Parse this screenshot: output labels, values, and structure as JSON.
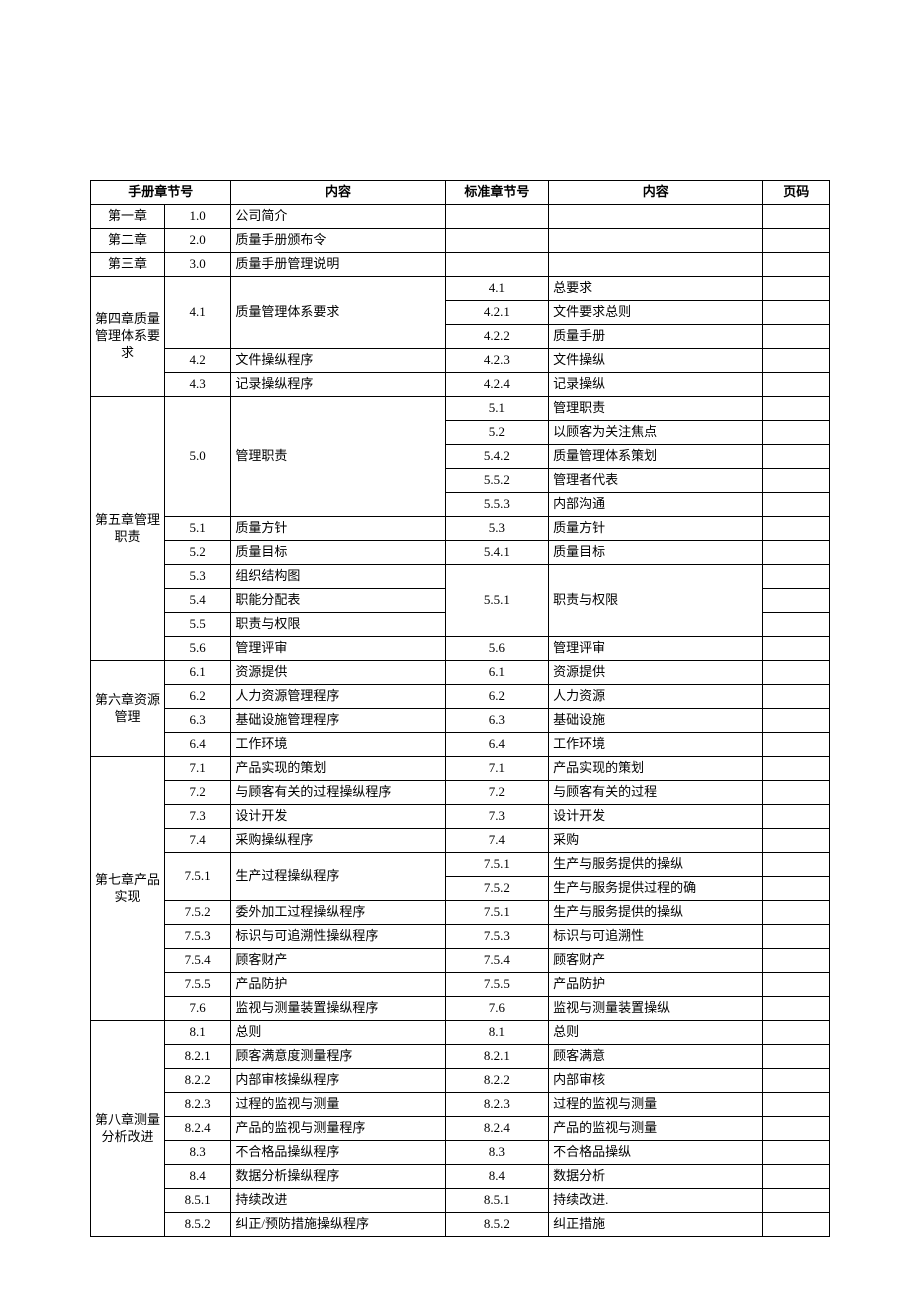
{
  "headers": {
    "manual_chapter": "手册章节号",
    "content1": "内容",
    "std_chapter": "标准章节号",
    "content2": "内容",
    "page": "页码"
  },
  "rows": [
    {
      "chapter": "第一章",
      "chapter_rows": 1,
      "section": "1.0",
      "content1": "公司简介",
      "std": "",
      "content2": "",
      "page": ""
    },
    {
      "chapter": "第二章",
      "chapter_rows": 1,
      "section": "2.0",
      "content1": "质量手册颁布令",
      "std": "",
      "content2": "",
      "page": ""
    },
    {
      "chapter": "第三章",
      "chapter_rows": 1,
      "section": "3.0",
      "content1": "质量手册管理说明",
      "std": "",
      "content2": "",
      "page": ""
    },
    {
      "chapter": "第四章质量管理体系要求",
      "chapter_rows": 5,
      "section": "4.1",
      "section_rows": 3,
      "content1": "质量管理体系要求",
      "content1_rows": 3,
      "std": "4.1",
      "content2": "总要求",
      "page": ""
    },
    {
      "std": "4.2.1",
      "content2": "文件要求总则",
      "page": ""
    },
    {
      "std": "4.2.2",
      "content2": "质量手册",
      "page": ""
    },
    {
      "section": "4.2",
      "content1": "文件操纵程序",
      "std": "4.2.3",
      "content2": "文件操纵",
      "page": ""
    },
    {
      "section": "4.3",
      "content1": "记录操纵程序",
      "std": "4.2.4",
      "content2": "记录操纵",
      "page": ""
    },
    {
      "chapter": "第五章管理职责",
      "chapter_rows": 11,
      "section": "5.0",
      "section_rows": 5,
      "content1": "管理职责",
      "content1_rows": 5,
      "std": "5.1",
      "content2": "管理职责",
      "page": ""
    },
    {
      "std": "5.2",
      "content2": "以顾客为关注焦点",
      "page": ""
    },
    {
      "std": "5.4.2",
      "content2": "质量管理体系策划",
      "page": ""
    },
    {
      "std": "5.5.2",
      "content2": "管理者代表",
      "page": ""
    },
    {
      "std": "5.5.3",
      "content2": "内部沟通",
      "page": ""
    },
    {
      "section": "5.1",
      "content1": "质量方针",
      "std": "5.3",
      "content2": "质量方针",
      "page": ""
    },
    {
      "section": "5.2",
      "content1": "质量目标",
      "std": "5.4.1",
      "content2": "质量目标",
      "page": ""
    },
    {
      "section": "5.3",
      "content1": "组织结构图",
      "std": "5.5.1",
      "std_rows": 3,
      "content2": "职责与权限",
      "content2_rows": 3,
      "page": ""
    },
    {
      "section": "5.4",
      "content1": "职能分配表",
      "page": ""
    },
    {
      "section": "5.5",
      "content1": "职责与权限",
      "page": ""
    },
    {
      "section": "5.6",
      "content1": "管理评审",
      "std": "5.6",
      "content2": "管理评审",
      "page": ""
    },
    {
      "chapter": "第六章资源管理",
      "chapter_rows": 4,
      "section": "6.1",
      "content1": "资源提供",
      "std": "6.1",
      "content2": "资源提供",
      "page": ""
    },
    {
      "section": "6.2",
      "content1": "人力资源管理程序",
      "std": "6.2",
      "content2": "人力资源",
      "page": ""
    },
    {
      "section": "6.3",
      "content1": "基础设施管理程序",
      "std": "6.3",
      "content2": "基础设施",
      "page": ""
    },
    {
      "section": "6.4",
      "content1": "工作环境",
      "std": "6.4",
      "content2": "工作环境",
      "page": ""
    },
    {
      "chapter": "第七章产品实现",
      "chapter_rows": 11,
      "section": "7.1",
      "content1": "产品实现的策划",
      "std": "7.1",
      "content2": "产品实现的策划",
      "page": ""
    },
    {
      "section": "7.2",
      "content1": "与顾客有关的过程操纵程序",
      "std": "7.2",
      "content2": "与顾客有关的过程",
      "page": ""
    },
    {
      "section": "7.3",
      "content1": "设计开发",
      "std": "7.3",
      "content2": "设计开发",
      "page": ""
    },
    {
      "section": "7.4",
      "content1": "采购操纵程序",
      "std": "7.4",
      "content2": "采购",
      "page": ""
    },
    {
      "section": "7.5.1",
      "section_rows": 2,
      "content1": "生产过程操纵程序",
      "content1_rows": 2,
      "std": "7.5.1",
      "content2": "生产与服务提供的操纵",
      "page": ""
    },
    {
      "std": "7.5.2",
      "content2": "生产与服务提供过程的确",
      "page": ""
    },
    {
      "section": "7.5.2",
      "content1": "委外加工过程操纵程序",
      "std": "7.5.1",
      "content2": "生产与服务提供的操纵",
      "page": ""
    },
    {
      "section": "7.5.3",
      "content1": "标识与可追溯性操纵程序",
      "std": "7.5.3",
      "content2": "标识与可追溯性",
      "page": ""
    },
    {
      "section": "7.5.4",
      "content1": "顾客财产",
      "std": "7.5.4",
      "content2": "顾客财产",
      "page": ""
    },
    {
      "section": "7.5.5",
      "content1": "产品防护",
      "std": "7.5.5",
      "content2": "产品防护",
      "page": ""
    },
    {
      "section": "7.6",
      "content1": "监视与测量装置操纵程序",
      "std": "7.6",
      "content2": "监视与测量装置操纵",
      "page": ""
    },
    {
      "chapter": "第八章测量分析改进",
      "chapter_rows": 9,
      "section": "8.1",
      "content1": "总则",
      "std": "8.1",
      "content2": "总则",
      "page": ""
    },
    {
      "section": "8.2.1",
      "content1": "顾客满意度测量程序",
      "std": "8.2.1",
      "content2": "顾客满意",
      "page": ""
    },
    {
      "section": "8.2.2",
      "content1": "内部审核操纵程序",
      "std": "8.2.2",
      "content2": "内部审核",
      "page": ""
    },
    {
      "section": "8.2.3",
      "content1": "过程的监视与测量",
      "std": "8.2.3",
      "content2": "过程的监视与测量",
      "page": ""
    },
    {
      "section": "8.2.4",
      "content1": "产品的监视与测量程序",
      "std": "8.2.4",
      "content2": "产品的监视与测量",
      "page": ""
    },
    {
      "section": "8.3",
      "content1": "不合格品操纵程序",
      "std": "8.3",
      "content2": "不合格品操纵",
      "page": ""
    },
    {
      "section": "8.4",
      "content1": "数据分析操纵程序",
      "std": "8.4",
      "content2": "数据分析",
      "page": ""
    },
    {
      "section": "8.5.1",
      "content1": "持续改进",
      "std": "8.5.1",
      "content2": "持续改进.",
      "page": ""
    },
    {
      "section": "8.5.2",
      "content1": "纠正/预防措施操纵程序",
      "std": "8.5.2",
      "content2": "纠正措施",
      "page": ""
    }
  ]
}
